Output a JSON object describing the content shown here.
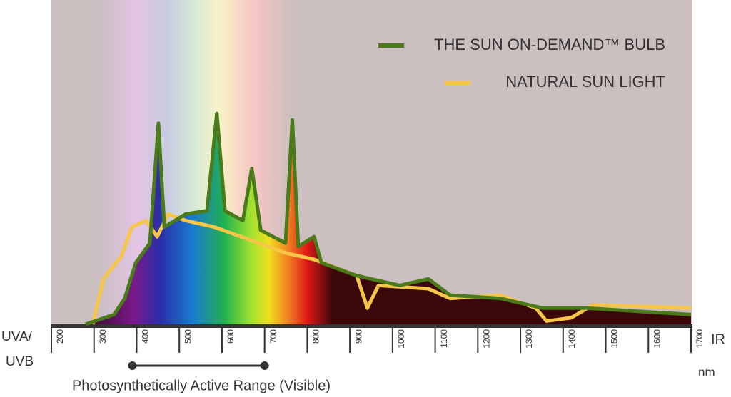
{
  "chart_data": {
    "type": "line",
    "series": [
      {
        "name": "THE SUN ON-DEMAND™ BULB",
        "color": "#4a7a1a",
        "x": [
          280,
          347,
          372,
          398,
          431,
          451,
          465,
          515,
          565,
          588,
          607,
          649,
          670,
          691,
          749,
          765,
          779,
          816,
          833,
          916,
          1017,
          1084,
          1135,
          1252,
          1352,
          1453,
          1700
        ],
        "values": [
          0,
          3,
          8,
          19,
          25,
          62,
          30,
          34,
          35,
          65,
          35,
          32,
          48,
          29,
          25,
          63,
          24,
          27,
          19,
          15,
          12,
          14,
          9,
          8,
          5,
          5,
          3
        ]
      },
      {
        "name": "NATURAL SUN LIGHT",
        "color": "#f7c548",
        "x": [
          297,
          322,
          364,
          389,
          422,
          448,
          474,
          515,
          582,
          666,
          749,
          816,
          916,
          941,
          967,
          1084,
          1135,
          1252,
          1336,
          1361,
          1419,
          1470,
          1700
        ],
        "values": [
          0,
          14,
          21,
          30,
          32,
          27,
          34,
          32,
          30,
          26,
          22,
          20,
          15,
          5,
          12,
          11,
          8,
          9,
          5,
          1,
          2,
          6,
          5
        ]
      }
    ],
    "xlim": [
      200,
      1700
    ],
    "xticks": [
      200,
      300,
      400,
      500,
      600,
      700,
      800,
      900,
      1000,
      1100,
      1200,
      1300,
      1400,
      1500,
      1600,
      1700
    ],
    "ylim": [
      0,
      100
    ],
    "legend": "top-right",
    "x_left_label": [
      "UVA/",
      "UVB"
    ],
    "x_right_label": "IR",
    "x_unit": "nm",
    "range_label": "Photosynthetically Active Range (Visible)",
    "range": [
      400,
      700
    ]
  }
}
